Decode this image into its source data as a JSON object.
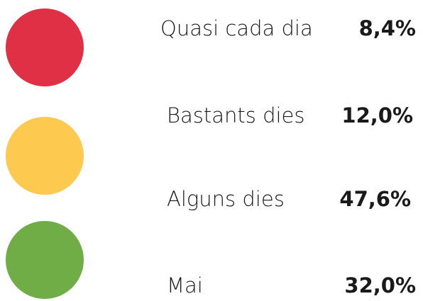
{
  "items": [
    {
      "label": "Quasi cada dia",
      "value": "8,4%"
    },
    {
      "label": "Bastants dies",
      "value": "12,0%"
    },
    {
      "label": "Alguns dies",
      "value": "47,6%"
    },
    {
      "label": "Mai",
      "value": "32,0%"
    }
  ]
}
